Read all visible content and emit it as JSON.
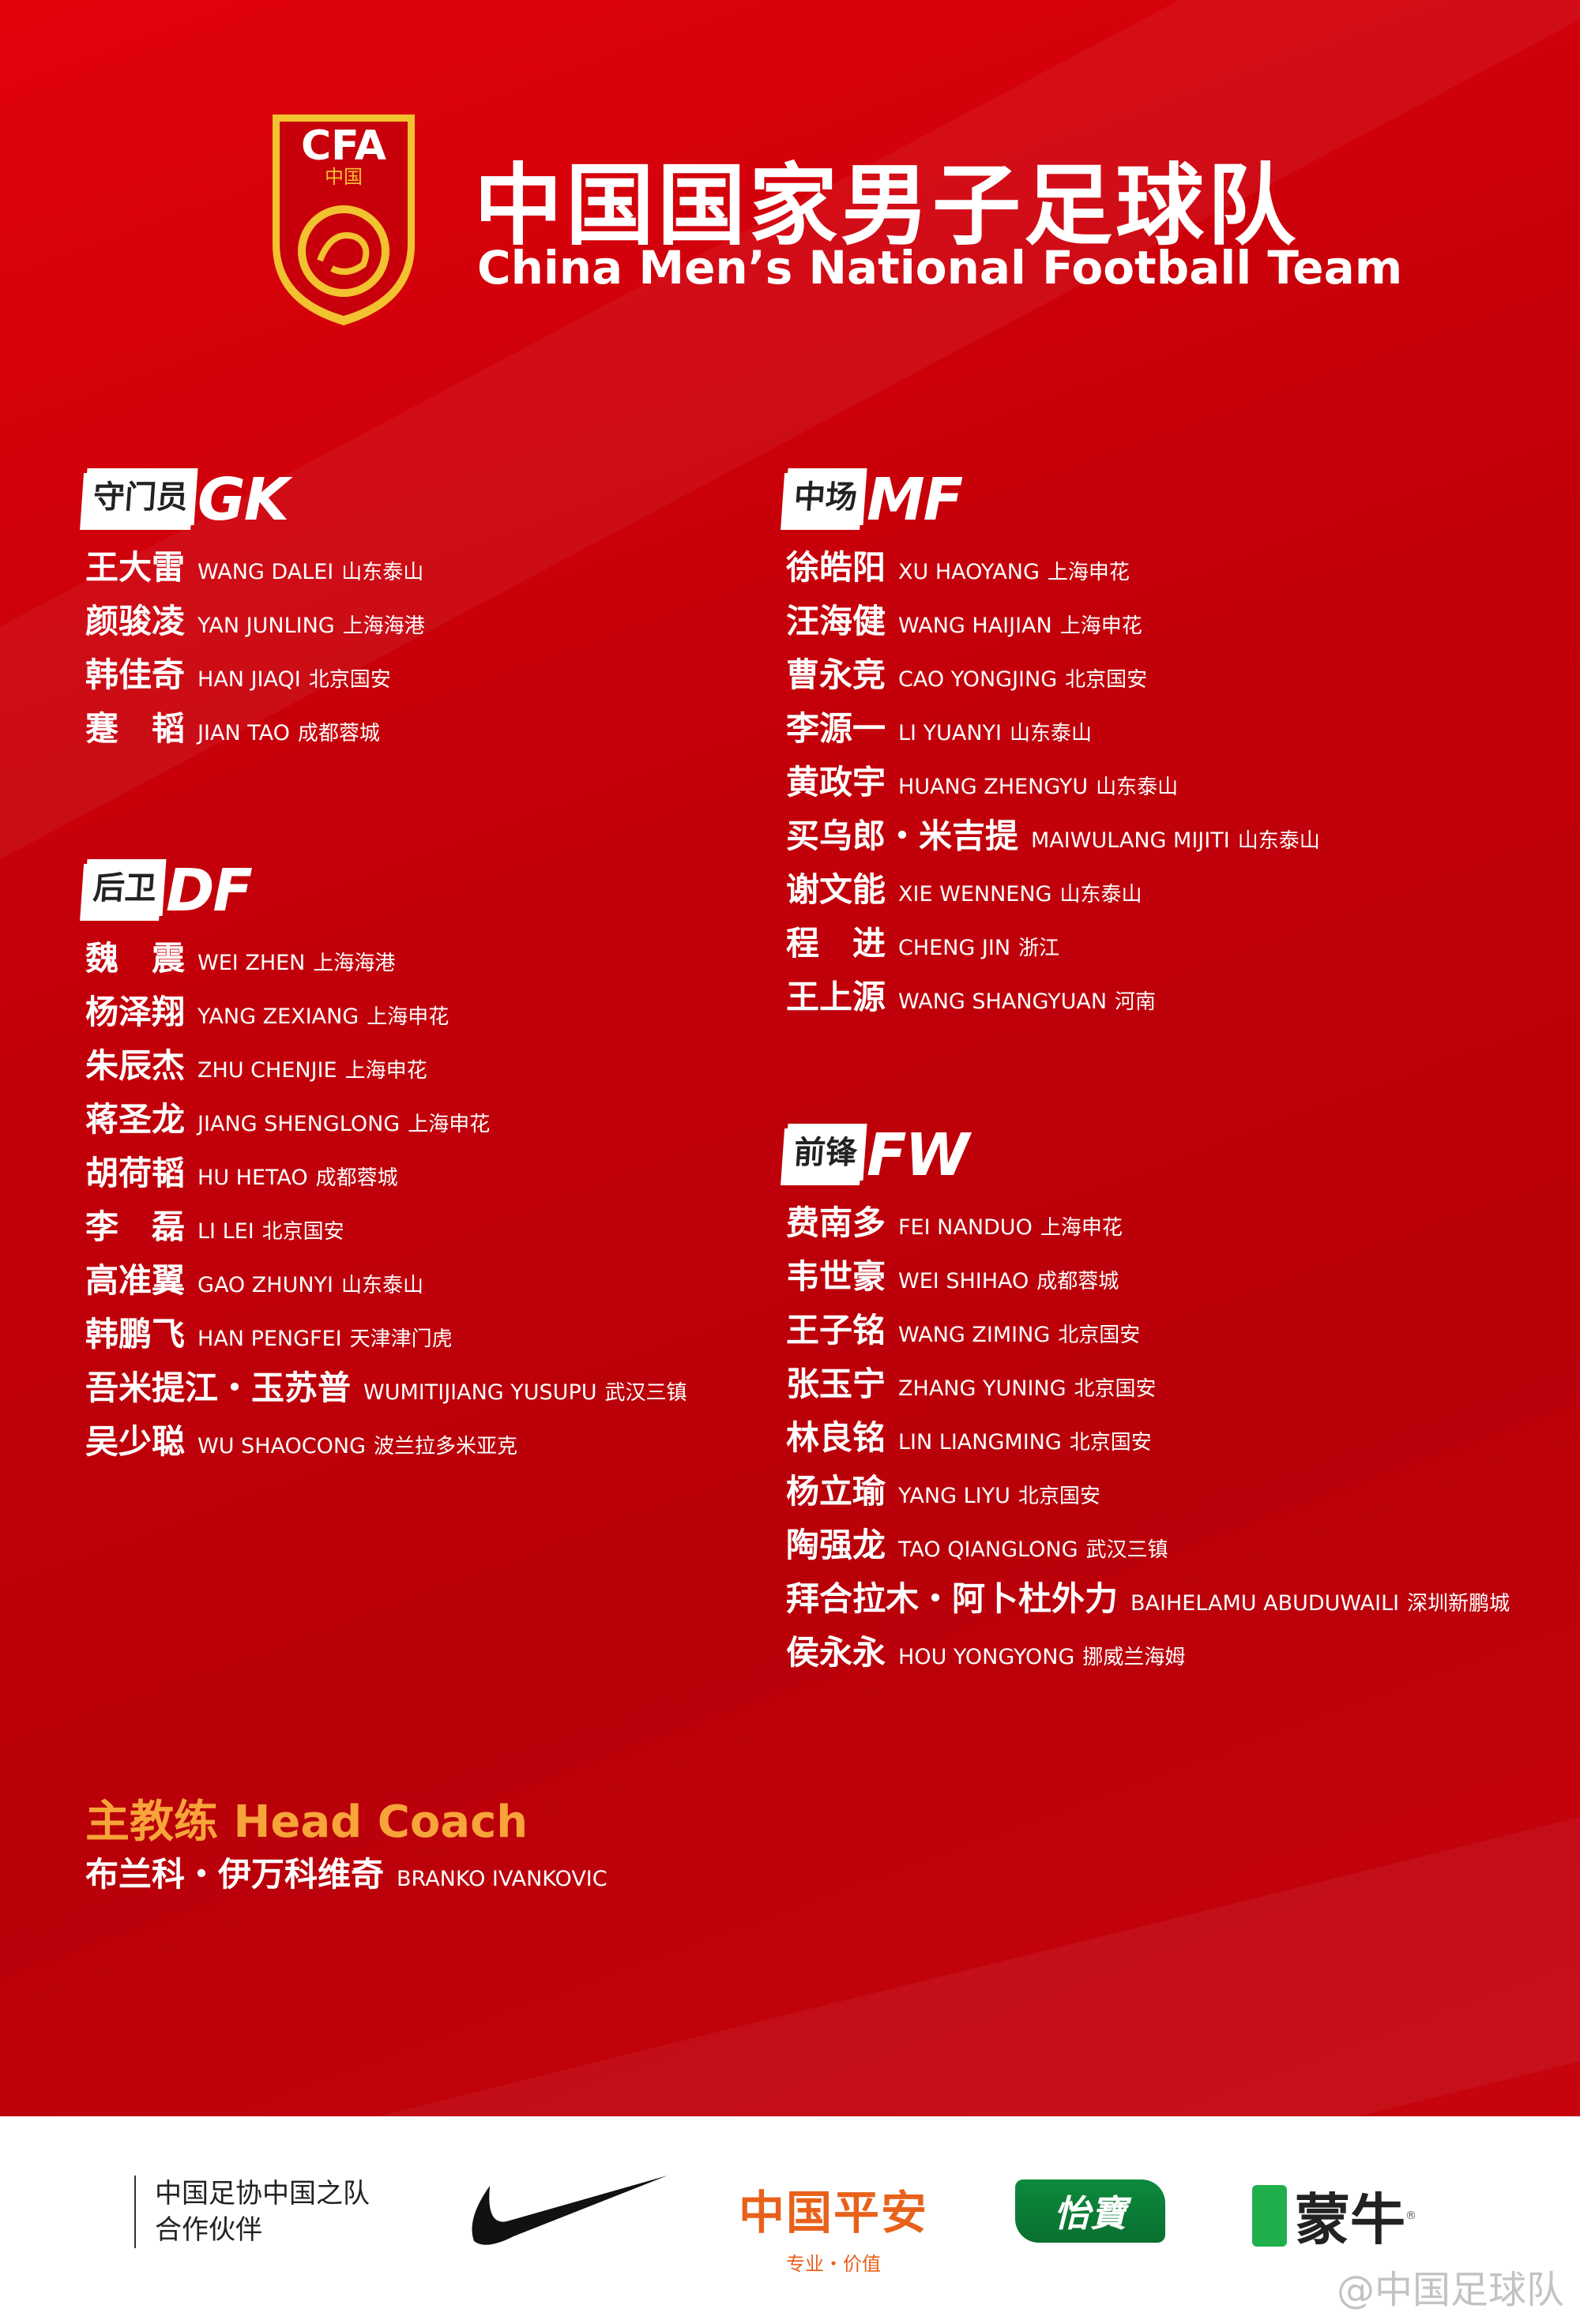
{
  "header": {
    "logo_text": "CFA",
    "logo_sub": "中国",
    "title_cn": "中国国家男子足球队",
    "title_en": "China Men’s National Football Team"
  },
  "colors": {
    "background": "#c4000a",
    "accent": "#f7a43a",
    "text": "#ffffff"
  },
  "sections": {
    "gk": {
      "cn": "守门员",
      "en": "GK",
      "players": [
        {
          "cn": "王大雷",
          "en": "WANG DALEI",
          "club": "山东泰山"
        },
        {
          "cn": "颜骏凌",
          "en": "YAN JUNLING",
          "club": "上海海港"
        },
        {
          "cn": "韩佳奇",
          "en": "HAN JIAQI",
          "club": "北京国安"
        },
        {
          "cn": "蹇　韬",
          "en": "JIAN TAO",
          "club": "成都蓉城"
        }
      ]
    },
    "df": {
      "cn": "后卫",
      "en": "DF",
      "players": [
        {
          "cn": "魏　震",
          "en": "WEI ZHEN",
          "club": "上海海港"
        },
        {
          "cn": "杨泽翔",
          "en": "YANG ZEXIANG",
          "club": "上海申花"
        },
        {
          "cn": "朱辰杰",
          "en": "ZHU CHENJIE",
          "club": "上海申花"
        },
        {
          "cn": "蒋圣龙",
          "en": "JIANG SHENGLONG",
          "club": "上海申花"
        },
        {
          "cn": "胡荷韬",
          "en": "HU HETAO",
          "club": "成都蓉城"
        },
        {
          "cn": "李　磊",
          "en": "LI LEI",
          "club": "北京国安"
        },
        {
          "cn": "高准翼",
          "en": "GAO ZHUNYI",
          "club": "山东泰山"
        },
        {
          "cn": "韩鹏飞",
          "en": "HAN PENGFEI",
          "club": "天津津门虎"
        },
        {
          "cn": "吾米提江・玉苏普",
          "en": "WUMITIJIANG YUSUPU",
          "club": "武汉三镇"
        },
        {
          "cn": "吴少聪",
          "en": "WU SHAOCONG",
          "club": "波兰拉多米亚克"
        }
      ]
    },
    "mf": {
      "cn": "中场",
      "en": "MF",
      "players": [
        {
          "cn": "徐皓阳",
          "en": "XU HAOYANG",
          "club": "上海申花"
        },
        {
          "cn": "汪海健",
          "en": "WANG HAIJIAN",
          "club": "上海申花"
        },
        {
          "cn": "曹永竞",
          "en": "CAO YONGJING",
          "club": "北京国安"
        },
        {
          "cn": "李源一",
          "en": "LI YUANYI",
          "club": "山东泰山"
        },
        {
          "cn": "黄政宇",
          "en": "HUANG ZHENGYU",
          "club": "山东泰山"
        },
        {
          "cn": "买乌郎・米吉提",
          "en": "MAIWULANG MIJITI",
          "club": "山东泰山"
        },
        {
          "cn": "谢文能",
          "en": "XIE WENNENG",
          "club": "山东泰山"
        },
        {
          "cn": "程　进",
          "en": "CHENG JIN",
          "club": "浙江"
        },
        {
          "cn": "王上源",
          "en": "WANG SHANGYUAN",
          "club": "河南"
        }
      ]
    },
    "fw": {
      "cn": "前锋",
      "en": "FW",
      "players": [
        {
          "cn": "费南多",
          "en": "FEI NANDUO",
          "club": "上海申花"
        },
        {
          "cn": "韦世豪",
          "en": "WEI SHIHAO",
          "club": "成都蓉城"
        },
        {
          "cn": "王子铭",
          "en": "WANG ZIMING",
          "club": "北京国安"
        },
        {
          "cn": "张玉宁",
          "en": "ZHANG YUNING",
          "club": "北京国安"
        },
        {
          "cn": "林良铭",
          "en": "LIN LIANGMING",
          "club": "北京国安"
        },
        {
          "cn": "杨立瑜",
          "en": "YANG LIYU",
          "club": "北京国安"
        },
        {
          "cn": "陶强龙",
          "en": "TAO QIANGLONG",
          "club": "武汉三镇"
        },
        {
          "cn": "拜合拉木・阿卜杜外力",
          "en": "BAIHELAMU ABUDUWAILI",
          "club": "深圳新鹏城"
        },
        {
          "cn": "侯永永",
          "en": "HOU YONGYONG",
          "club": "挪威兰海姆"
        }
      ]
    }
  },
  "coach": {
    "title": "主教练 Head Coach",
    "cn": "布兰科・伊万科维奇",
    "en": "BRANKO IVANKOVIC"
  },
  "footer": {
    "partner_line1": "中国足协中国之队",
    "partner_line2": "合作伙伴",
    "sponsors": [
      {
        "name": "nike-logo"
      },
      {
        "name": "中国平安",
        "sub": "专业・价值"
      },
      {
        "name": "怡寶"
      },
      {
        "name": "蒙牛"
      }
    ],
    "weibo": "@中国足球队"
  }
}
